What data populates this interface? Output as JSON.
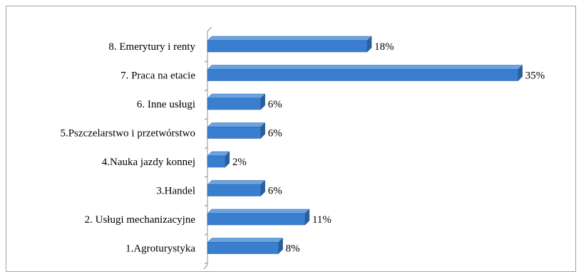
{
  "chart_data": {
    "type": "bar",
    "orientation": "horizontal",
    "style": "3d",
    "categories": [
      "8. Emerytury i renty",
      "7. Praca na etacie",
      "6. Inne usługi",
      "5.Pszczelarstwo i przetwórstwo",
      "4.Nauka jazdy konnej",
      "3.Handel",
      "2. Usługi mechanizacyjne",
      "1.Agroturystyka"
    ],
    "values": [
      18,
      35,
      6,
      6,
      2,
      6,
      11,
      8
    ],
    "value_labels": [
      "18%",
      "35%",
      "6%",
      "6%",
      "2%",
      "6%",
      "11%",
      "8%"
    ],
    "unit": "%",
    "xlim": [
      0,
      35
    ],
    "grid": false,
    "legend": "none",
    "colors": {
      "bar_front": "#3a7fcf",
      "bar_top": "#6aa3e3",
      "bar_side": "#2a5f9e",
      "axis": "#909090"
    }
  }
}
